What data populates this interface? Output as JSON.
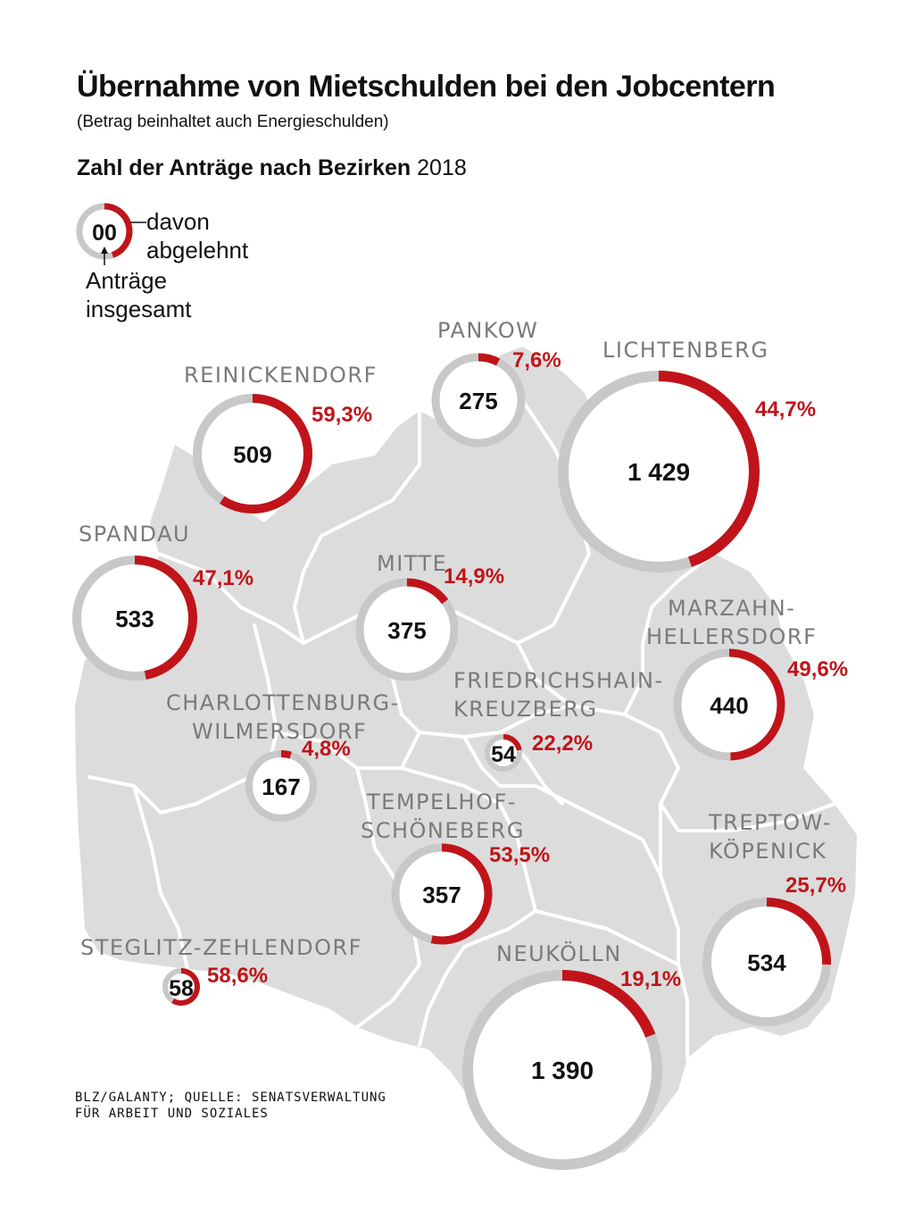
{
  "title": "Übernahme von Mietschulden bei den Jobcentern",
  "subtitle": "(Betrag beinhaltet auch Energieschulden)",
  "heading": {
    "bold": "Zahl der Anträge nach Bezirken",
    "year": "2018"
  },
  "legend": {
    "sample": "00",
    "rejected_label_1": "davon",
    "rejected_label_2": "abgelehnt",
    "total_label_1": "Anträge",
    "total_label_2": "insgesamt"
  },
  "colors": {
    "ring": "#c8c8c8",
    "rejected": "#c0141a",
    "map": "#dcdcdc",
    "district_name": "#7a7a7a"
  },
  "districts": [
    {
      "id": "reinickendorf",
      "name_lines": [
        "REINICKENDORF"
      ],
      "total": "509",
      "rejected_pct": "59,3%",
      "rejected_share": 0.593
    },
    {
      "id": "pankow",
      "name_lines": [
        "PANKOW"
      ],
      "total": "275",
      "rejected_pct": "7,6%",
      "rejected_share": 0.076
    },
    {
      "id": "lichtenberg",
      "name_lines": [
        "LICHTENBERG"
      ],
      "total": "1 429",
      "rejected_pct": "44,7%",
      "rejected_share": 0.447
    },
    {
      "id": "spandau",
      "name_lines": [
        "SPANDAU"
      ],
      "total": "533",
      "rejected_pct": "47,1%",
      "rejected_share": 0.471
    },
    {
      "id": "mitte",
      "name_lines": [
        "MITTE"
      ],
      "total": "375",
      "rejected_pct": "14,9%",
      "rejected_share": 0.149
    },
    {
      "id": "marzahn",
      "name_lines": [
        "MARZAHN-",
        "HELLERSDORF"
      ],
      "total": "440",
      "rejected_pct": "49,6%",
      "rejected_share": 0.496
    },
    {
      "id": "friedrichshain",
      "name_lines": [
        "FRIEDRICHSHAIN-",
        "KREUZBERG"
      ],
      "total": "54",
      "rejected_pct": "22,2%",
      "rejected_share": 0.222
    },
    {
      "id": "charlottenburg",
      "name_lines": [
        "CHARLOTTENBURG-",
        "WILMERSDORF"
      ],
      "total": "167",
      "rejected_pct": "4,8%",
      "rejected_share": 0.048
    },
    {
      "id": "tempelhof",
      "name_lines": [
        "TEMPELHOF-",
        "SCHÖNEBERG"
      ],
      "total": "357",
      "rejected_pct": "53,5%",
      "rejected_share": 0.535
    },
    {
      "id": "treptow",
      "name_lines": [
        "TREPTOW-",
        "KÖPENICK"
      ],
      "total": "534",
      "rejected_pct": "25,7%",
      "rejected_share": 0.257
    },
    {
      "id": "steglitz",
      "name_lines": [
        "STEGLITZ-ZEHLENDORF"
      ],
      "total": "58",
      "rejected_pct": "58,6%",
      "rejected_share": 0.586
    },
    {
      "id": "neukoelln",
      "name_lines": [
        "NEUKÖLLN"
      ],
      "total": "1 390",
      "rejected_pct": "19,1%",
      "rejected_share": 0.191
    }
  ],
  "credit": {
    "line1": "BLZ/GALANTY; QUELLE: SENATSVERWALTUNG",
    "line2": "FÜR ARBEIT UND SOZIALES"
  }
}
